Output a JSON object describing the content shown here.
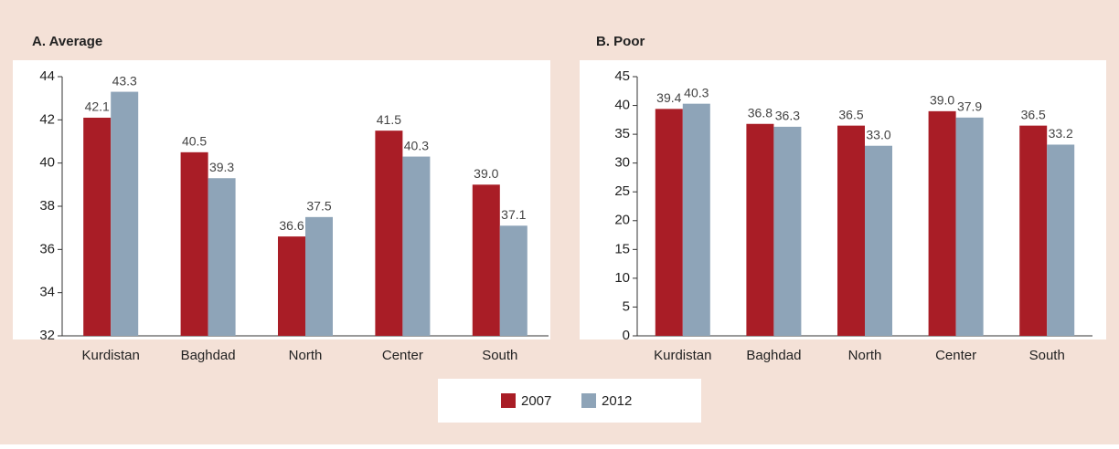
{
  "chart_data": [
    {
      "type": "bar",
      "title": "A. Average",
      "categories": [
        "Kurdistan",
        "Baghdad",
        "North",
        "Center",
        "South"
      ],
      "series": [
        {
          "values": [
            42.1,
            40.5,
            36.6,
            41.5,
            39.0
          ],
          "value_labels": [
            "42.1",
            "40.5",
            "36.6",
            "41.5",
            "39.0"
          ]
        },
        {
          "values": [
            43.3,
            39.3,
            37.5,
            40.3,
            37.1
          ],
          "value_labels": [
            "43.3",
            "39.3",
            "37.5",
            "40.3",
            "37.1"
          ]
        }
      ],
      "ylim": [
        32,
        44
      ],
      "yticks": [
        32,
        34,
        36,
        38,
        40,
        42,
        44
      ]
    },
    {
      "type": "bar",
      "title": "B. Poor",
      "categories": [
        "Kurdistan",
        "Baghdad",
        "North",
        "Center",
        "South"
      ],
      "series": [
        {
          "values": [
            39.4,
            36.8,
            36.5,
            39.0,
            36.5
          ],
          "value_labels": [
            "39.4",
            "36.8",
            "36.5",
            "39.0",
            "36.5"
          ]
        },
        {
          "values": [
            40.3,
            36.3,
            33.0,
            37.9,
            33.2
          ],
          "value_labels": [
            "40.3",
            "36.3",
            "33.0",
            "37.9",
            "33.2"
          ]
        }
      ],
      "ylim": [
        0,
        45
      ],
      "yticks": [
        0,
        5,
        10,
        15,
        20,
        25,
        30,
        35,
        40,
        45
      ]
    }
  ],
  "legend": [
    {
      "name": "2007",
      "color": "#a91d26"
    },
    {
      "name": "2012",
      "color": "#8ea4b8"
    }
  ]
}
